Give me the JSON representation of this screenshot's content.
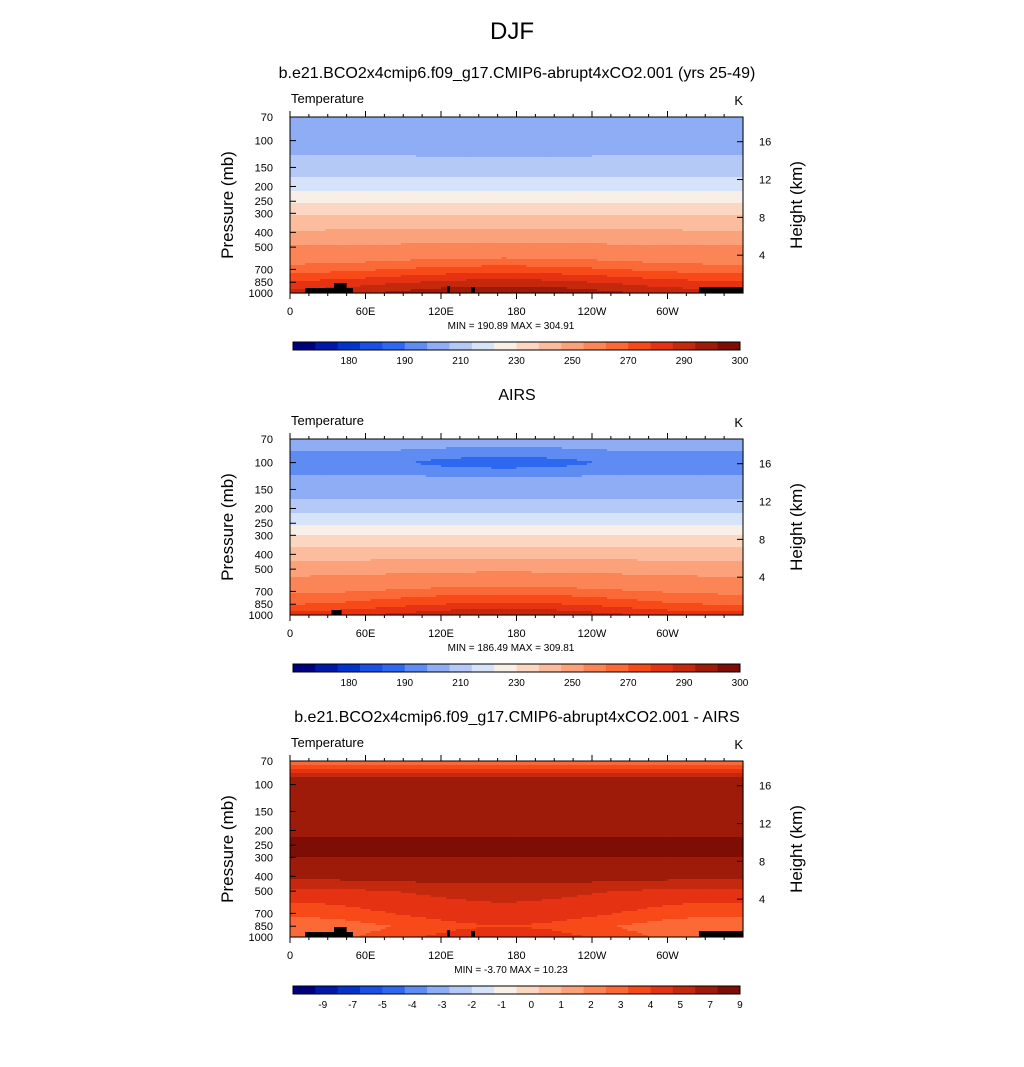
{
  "page": {
    "title": "DJF"
  },
  "colorbars": {
    "absolute": {
      "labels": [
        "180",
        "190",
        "210",
        "230",
        "250",
        "270",
        "290",
        "300"
      ],
      "colors": [
        "#00007f",
        "#0019a8",
        "#0034cc",
        "#1a50e6",
        "#2e68f0",
        "#5f8cf2",
        "#8fadf4",
        "#b5c9f6",
        "#d6e3f8",
        "#f8efe6",
        "#fbd7c2",
        "#fcbc9e",
        "#fca27a",
        "#fb8556",
        "#fb6937",
        "#f84a19",
        "#e43212",
        "#c4280d",
        "#9e1a09",
        "#7d0d05"
      ]
    },
    "difference": {
      "labels": [
        "-9",
        "-7",
        "-5",
        "-4",
        "-3",
        "-2",
        "-1",
        "0",
        "1",
        "2",
        "3",
        "4",
        "5",
        "7",
        "9"
      ],
      "colors": [
        "#00007f",
        "#0019a8",
        "#0034cc",
        "#1a50e6",
        "#2e68f0",
        "#5f8cf2",
        "#8fadf4",
        "#b5c9f6",
        "#d6e3f8",
        "#f8efe6",
        "#fbd7c2",
        "#fcbc9e",
        "#fca27a",
        "#fb8556",
        "#fb6937",
        "#f84a19",
        "#e43212",
        "#c4280d",
        "#9e1a09",
        "#7d0d05"
      ]
    }
  },
  "chart_data": [
    {
      "type": "heatmap",
      "title": "b.e21.BCO2x4cmip6.f09_g17.CMIP6-abrupt4xCO2.001 (yrs 25-49)",
      "variable": "Temperature",
      "units": "K",
      "ylabel": "Pressure (mb)",
      "y2label": "Height (km)",
      "yticks": [
        "70",
        "100",
        "150",
        "200",
        "250",
        "300",
        "400",
        "500",
        "700",
        "850",
        "1000"
      ],
      "y2ticks": [
        "16",
        "12",
        "8",
        "4"
      ],
      "xticks": [
        "0",
        "60E",
        "120E",
        "180",
        "120W",
        "60W"
      ],
      "min_max": "MIN = 190.89  MAX = 304.91",
      "colorbar": "absolute",
      "levels": [
        {
          "p": 70,
          "v": 208
        },
        {
          "p": 100,
          "v": 205
        },
        {
          "p": 150,
          "v": 214
        },
        {
          "p": 200,
          "v": 226
        },
        {
          "p": 250,
          "v": 238
        },
        {
          "p": 300,
          "v": 249
        },
        {
          "p": 400,
          "v": 262
        },
        {
          "p": 500,
          "v": 272
        },
        {
          "p": 700,
          "v": 285
        },
        {
          "p": 850,
          "v": 294
        },
        {
          "p": 1000,
          "v": 301
        }
      ],
      "zonal": {
        "amp": 4,
        "minAmp": 4
      }
    },
    {
      "type": "heatmap",
      "title": "AIRS",
      "variable": "Temperature",
      "units": "K",
      "ylabel": "Pressure (mb)",
      "y2label": "Height (km)",
      "yticks": [
        "70",
        "100",
        "150",
        "200",
        "250",
        "300",
        "400",
        "500",
        "700",
        "850",
        "1000"
      ],
      "y2ticks": [
        "16",
        "12",
        "8",
        "4"
      ],
      "xticks": [
        "0",
        "60E",
        "120E",
        "180",
        "120W",
        "60W"
      ],
      "min_max": "MIN = 186.49  MAX = 309.81",
      "colorbar": "absolute",
      "levels": [
        {
          "p": 70,
          "v": 204
        },
        {
          "p": 100,
          "v": 196
        },
        {
          "p": 150,
          "v": 205
        },
        {
          "p": 200,
          "v": 216
        },
        {
          "p": 250,
          "v": 229
        },
        {
          "p": 300,
          "v": 240
        },
        {
          "p": 400,
          "v": 256
        },
        {
          "p": 500,
          "v": 267
        },
        {
          "p": 700,
          "v": 281
        },
        {
          "p": 850,
          "v": 288
        },
        {
          "p": 1000,
          "v": 296
        }
      ],
      "zonal": {
        "amp": 4,
        "minAmp": 4
      }
    },
    {
      "type": "heatmap",
      "title": "b.e21.BCO2x4cmip6.f09_g17.CMIP6-abrupt4xCO2.001 - AIRS",
      "variable": "Temperature",
      "units": "K",
      "ylabel": "Pressure (mb)",
      "y2label": "Height (km)",
      "yticks": [
        "70",
        "100",
        "150",
        "200",
        "250",
        "300",
        "400",
        "500",
        "700",
        "850",
        "1000"
      ],
      "y2ticks": [
        "16",
        "12",
        "8",
        "4"
      ],
      "xticks": [
        "0",
        "60E",
        "120E",
        "180",
        "120W",
        "60W"
      ],
      "min_max": "MIN = -3.70  MAX =  10.23",
      "colorbar": "difference",
      "levels": [
        {
          "p": 70,
          "v": 3
        },
        {
          "p": 80,
          "v": 5.5
        },
        {
          "p": 100,
          "v": 8.5
        },
        {
          "p": 150,
          "v": 8.2
        },
        {
          "p": 200,
          "v": 8.8
        },
        {
          "p": 250,
          "v": 9.2
        },
        {
          "p": 300,
          "v": 9.0
        },
        {
          "p": 400,
          "v": 7.5
        },
        {
          "p": 500,
          "v": 6.0
        },
        {
          "p": 700,
          "v": 5.0
        },
        {
          "p": 850,
          "v": 4.0
        },
        {
          "p": 1000,
          "v": 4.5
        }
      ],
      "zonal": {
        "amp": 1.2,
        "minAmp": 0
      }
    }
  ]
}
